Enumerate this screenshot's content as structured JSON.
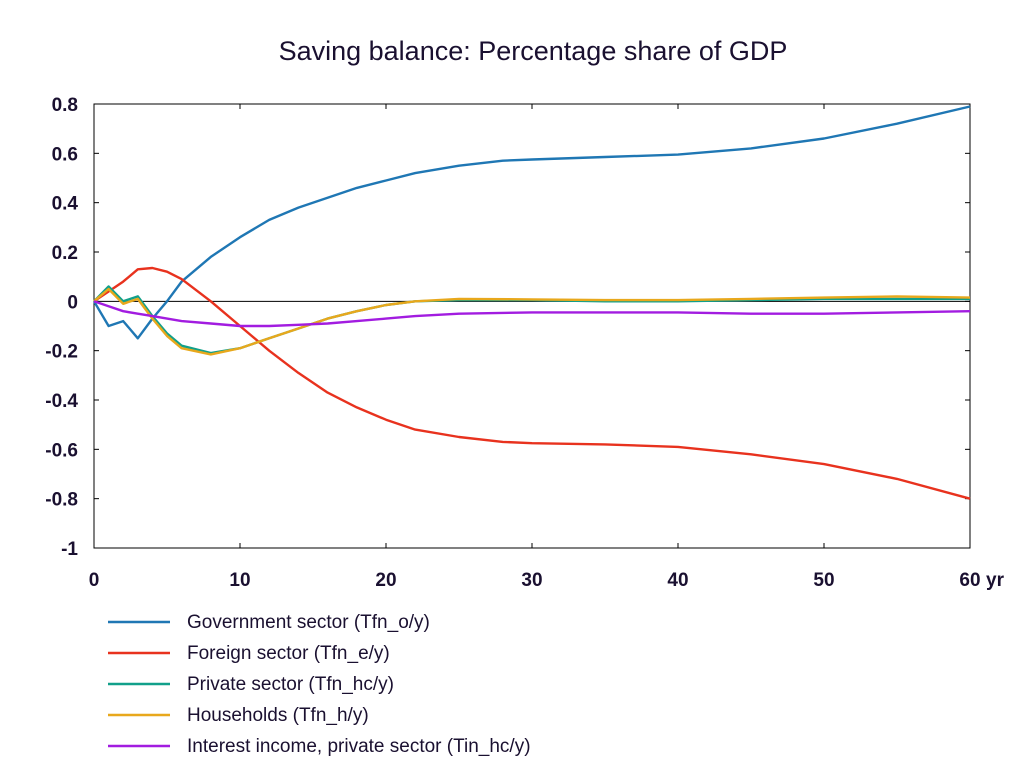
{
  "chart_data": {
    "type": "line",
    "title": "Saving balance: Percentage share of GDP",
    "xlabel": "yr",
    "ylabel": "",
    "xlim": [
      0,
      60
    ],
    "ylim": [
      -1,
      0.8
    ],
    "x_ticks": [
      "0",
      "10",
      "20",
      "30",
      "40",
      "50",
      "60"
    ],
    "y_ticks": [
      "0.8",
      "0.6",
      "0.4",
      "0.2",
      "0",
      "-0.2",
      "-0.4",
      "-0.6",
      "-0.8",
      "-1"
    ],
    "grid": false,
    "legend_position": "bottom",
    "series": [
      {
        "name": "Government sector (Tfn_o/y)",
        "color": "#1f77b4",
        "points": [
          [
            0,
            0
          ],
          [
            1,
            -0.1
          ],
          [
            2,
            -0.08
          ],
          [
            3,
            -0.15
          ],
          [
            4,
            -0.07
          ],
          [
            5,
            0.0
          ],
          [
            6,
            0.08
          ],
          [
            8,
            0.18
          ],
          [
            10,
            0.26
          ],
          [
            12,
            0.33
          ],
          [
            14,
            0.38
          ],
          [
            16,
            0.42
          ],
          [
            18,
            0.46
          ],
          [
            20,
            0.49
          ],
          [
            22,
            0.52
          ],
          [
            25,
            0.55
          ],
          [
            28,
            0.57
          ],
          [
            30,
            0.575
          ],
          [
            35,
            0.585
          ],
          [
            40,
            0.595
          ],
          [
            45,
            0.62
          ],
          [
            50,
            0.66
          ],
          [
            55,
            0.72
          ],
          [
            60,
            0.79
          ]
        ]
      },
      {
        "name": "Foreign sector (Tfn_e/y)",
        "color": "#e8321e",
        "points": [
          [
            0,
            0
          ],
          [
            1,
            0.04
          ],
          [
            2,
            0.08
          ],
          [
            3,
            0.13
          ],
          [
            4,
            0.135
          ],
          [
            5,
            0.12
          ],
          [
            6,
            0.09
          ],
          [
            8,
            0.0
          ],
          [
            10,
            -0.1
          ],
          [
            12,
            -0.2
          ],
          [
            14,
            -0.29
          ],
          [
            16,
            -0.37
          ],
          [
            18,
            -0.43
          ],
          [
            20,
            -0.48
          ],
          [
            22,
            -0.52
          ],
          [
            25,
            -0.55
          ],
          [
            28,
            -0.57
          ],
          [
            30,
            -0.575
          ],
          [
            35,
            -0.58
          ],
          [
            40,
            -0.59
          ],
          [
            45,
            -0.62
          ],
          [
            50,
            -0.66
          ],
          [
            55,
            -0.72
          ],
          [
            60,
            -0.8
          ]
        ]
      },
      {
        "name": "Private sector (Tfn_hc/y)",
        "color": "#12a08a",
        "points": [
          [
            0,
            0
          ],
          [
            1,
            0.06
          ],
          [
            2,
            0.0
          ],
          [
            3,
            0.02
          ],
          [
            4,
            -0.06
          ],
          [
            5,
            -0.13
          ],
          [
            6,
            -0.18
          ],
          [
            8,
            -0.21
          ],
          [
            10,
            -0.19
          ],
          [
            12,
            -0.15
          ],
          [
            14,
            -0.11
          ],
          [
            16,
            -0.07
          ],
          [
            18,
            -0.04
          ],
          [
            20,
            -0.015
          ],
          [
            22,
            0.0
          ],
          [
            25,
            0.005
          ],
          [
            30,
            0.005
          ],
          [
            35,
            0.0
          ],
          [
            40,
            0.0
          ],
          [
            45,
            0.005
          ],
          [
            50,
            0.01
          ],
          [
            55,
            0.01
          ],
          [
            60,
            0.01
          ]
        ]
      },
      {
        "name": "Households (Tfn_h/y)",
        "color": "#e8a81c",
        "points": [
          [
            0,
            0
          ],
          [
            1,
            0.05
          ],
          [
            2,
            -0.01
          ],
          [
            3,
            0.01
          ],
          [
            4,
            -0.07
          ],
          [
            5,
            -0.14
          ],
          [
            6,
            -0.19
          ],
          [
            8,
            -0.215
          ],
          [
            10,
            -0.19
          ],
          [
            12,
            -0.15
          ],
          [
            14,
            -0.11
          ],
          [
            16,
            -0.07
          ],
          [
            18,
            -0.04
          ],
          [
            20,
            -0.015
          ],
          [
            22,
            0.0
          ],
          [
            25,
            0.01
          ],
          [
            30,
            0.008
          ],
          [
            35,
            0.005
          ],
          [
            40,
            0.005
          ],
          [
            45,
            0.01
          ],
          [
            50,
            0.015
          ],
          [
            55,
            0.02
          ],
          [
            60,
            0.015
          ]
        ]
      },
      {
        "name": "Interest income, private sector (Tin_hc/y)",
        "color": "#a21ce0",
        "points": [
          [
            0,
            0
          ],
          [
            1,
            -0.02
          ],
          [
            2,
            -0.04
          ],
          [
            3,
            -0.05
          ],
          [
            4,
            -0.06
          ],
          [
            6,
            -0.08
          ],
          [
            8,
            -0.09
          ],
          [
            10,
            -0.1
          ],
          [
            12,
            -0.1
          ],
          [
            14,
            -0.095
          ],
          [
            16,
            -0.09
          ],
          [
            18,
            -0.08
          ],
          [
            20,
            -0.07
          ],
          [
            22,
            -0.06
          ],
          [
            25,
            -0.05
          ],
          [
            30,
            -0.045
          ],
          [
            35,
            -0.045
          ],
          [
            40,
            -0.045
          ],
          [
            45,
            -0.05
          ],
          [
            50,
            -0.05
          ],
          [
            55,
            -0.045
          ],
          [
            60,
            -0.04
          ]
        ]
      }
    ]
  }
}
